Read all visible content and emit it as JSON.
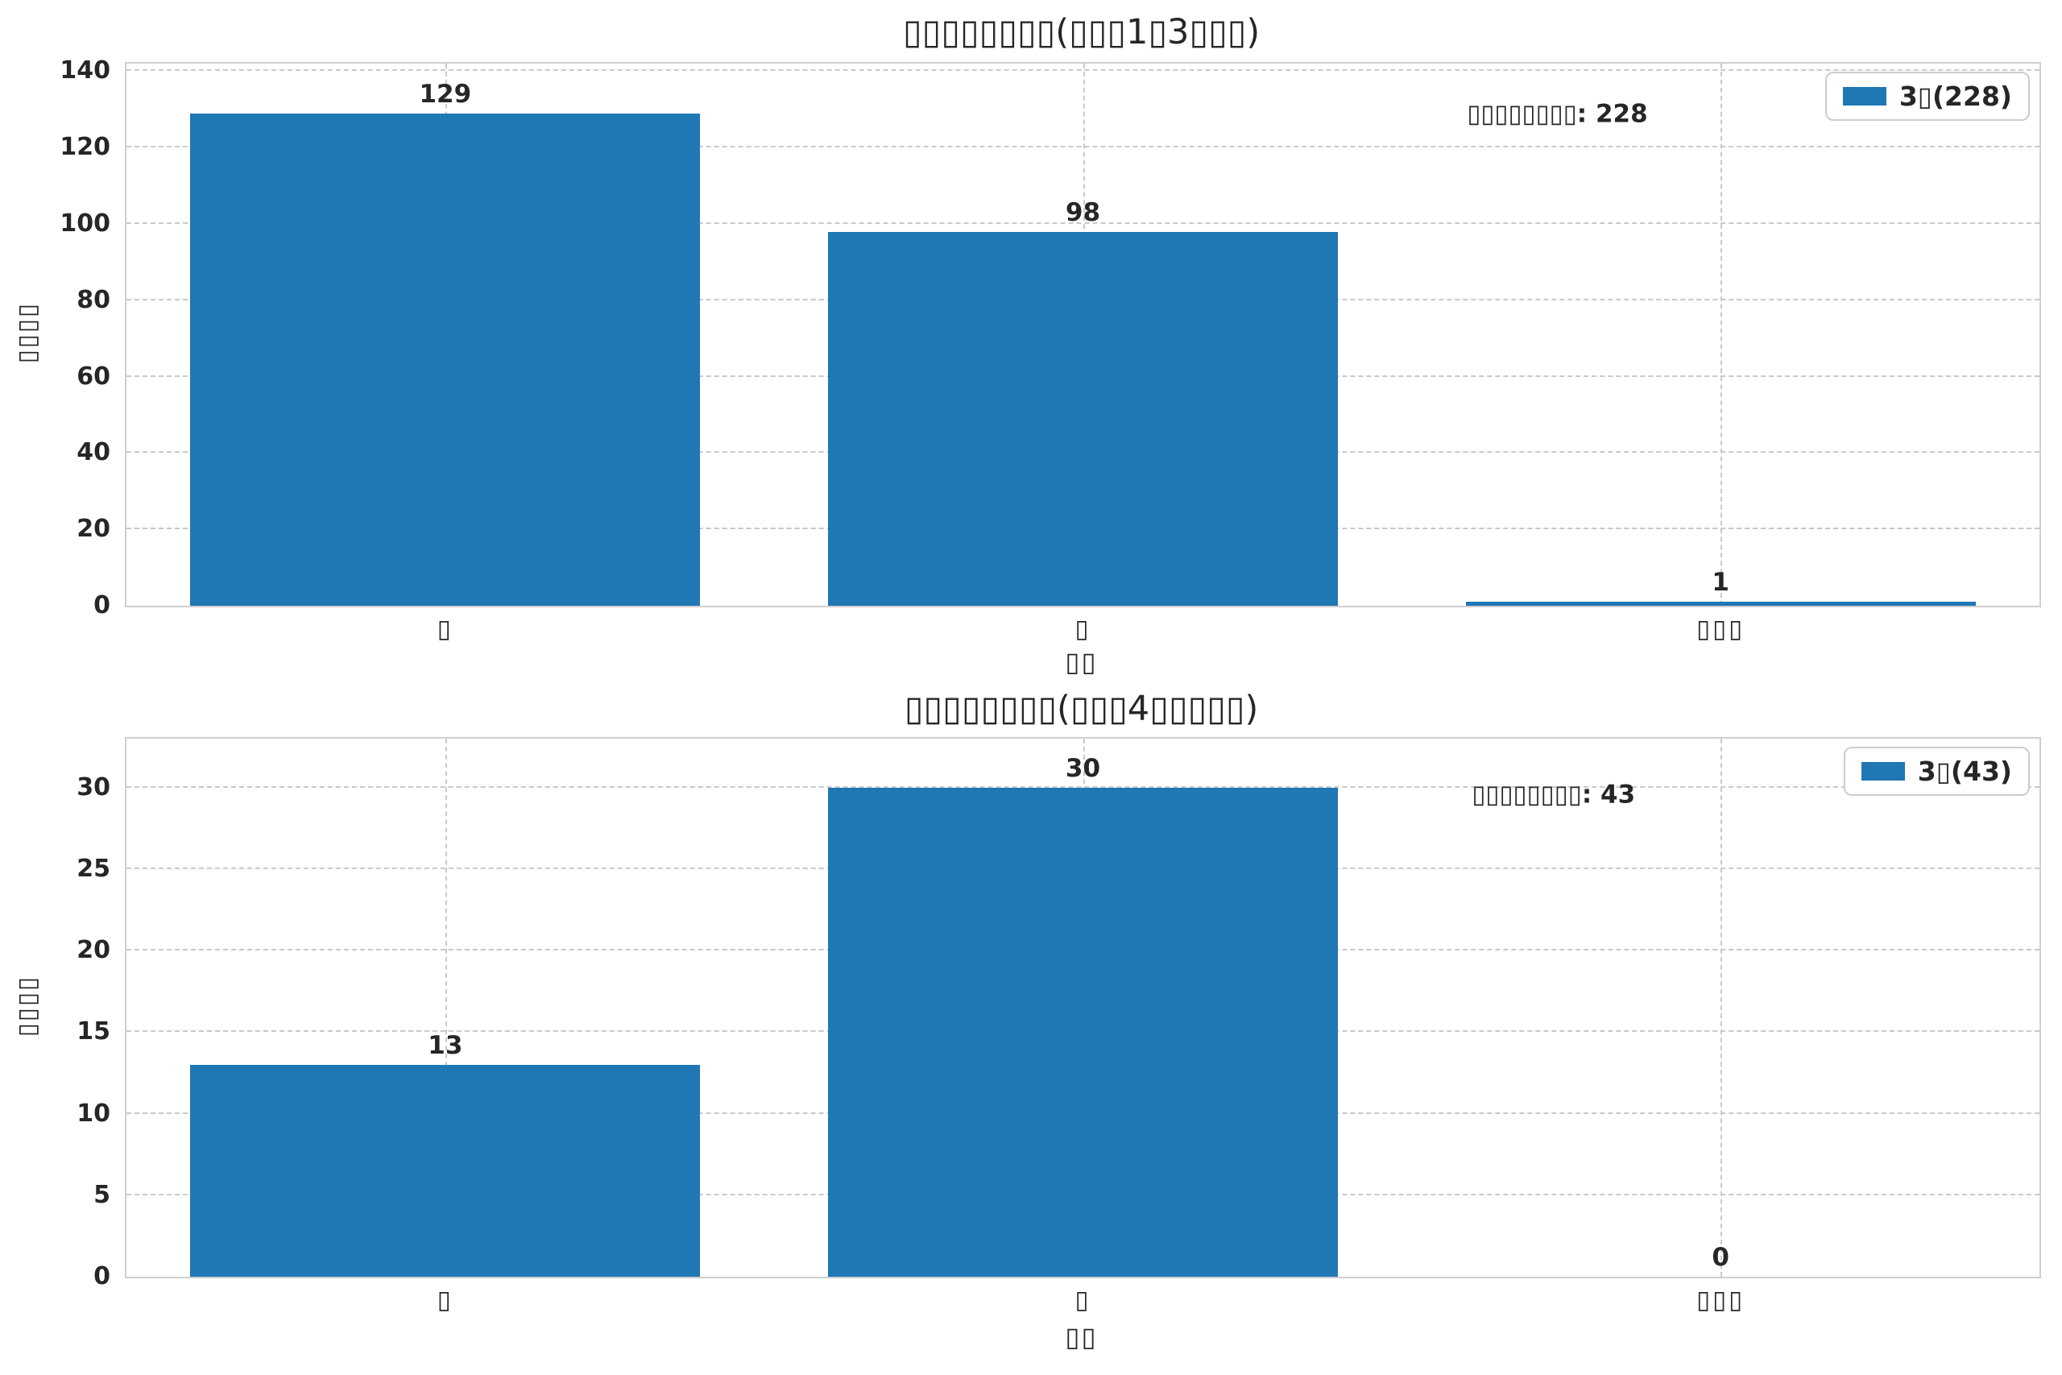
{
  "figure": {
    "background": "#ffffff",
    "bar_color": "#1f77b4",
    "text_color": "#262626",
    "grid_color": "#c9c9c9"
  },
  "chart_data": [
    {
      "type": "bar",
      "title": "▯▯▯▯▯▯▯▯(▯▯▯1▯3▯▯▯)",
      "xlabel": "▯▯",
      "ylabel": "▯▯▯▯",
      "categories": [
        "▯",
        "▯",
        "▯▯▯"
      ],
      "values": [
        129,
        98,
        1
      ],
      "value_labels": [
        "129",
        "98",
        "1"
      ],
      "yticks": [
        0,
        20,
        40,
        60,
        80,
        100,
        120,
        140
      ],
      "ylim": [
        0,
        142
      ],
      "grid": "dashed",
      "legend": {
        "label": "3▯(228)",
        "position": "upper right"
      },
      "annotation": {
        "text": "▯▯▯▯▯▯▯▯: 228"
      }
    },
    {
      "type": "bar",
      "title": "▯▯▯▯▯▯▯▯(▯▯▯4▯▯▯▯▯)",
      "xlabel": "▯▯",
      "ylabel": "▯▯▯▯",
      "categories": [
        "▯",
        "▯",
        "▯▯▯"
      ],
      "values": [
        13,
        30,
        0
      ],
      "value_labels": [
        "13",
        "30",
        "0"
      ],
      "yticks": [
        0,
        5,
        10,
        15,
        20,
        25,
        30
      ],
      "ylim": [
        0,
        33
      ],
      "grid": "dashed",
      "legend": {
        "label": "3▯(43)",
        "position": "upper right"
      },
      "annotation": {
        "text": "▯▯▯▯▯▯▯▯: 43"
      }
    }
  ]
}
